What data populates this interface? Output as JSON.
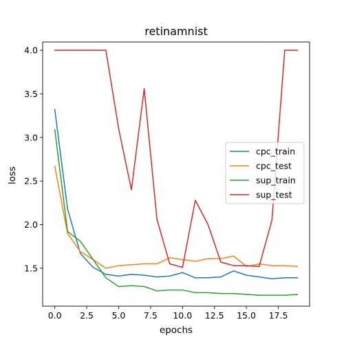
{
  "chart_data": {
    "type": "line",
    "title": "retinamnist",
    "xlabel": "epochs",
    "ylabel": "loss",
    "xlim": [
      -0.95,
      19.95
    ],
    "ylim": [
      1.065,
      4.095
    ],
    "xticks": [
      0.0,
      2.5,
      5.0,
      7.5,
      10.0,
      12.5,
      15.0,
      17.5
    ],
    "xtick_labels": [
      "0.0",
      "2.5",
      "5.0",
      "7.5",
      "10.0",
      "12.5",
      "15.0",
      "17.5"
    ],
    "yticks": [
      1.5,
      2.0,
      2.5,
      3.0,
      3.5,
      4.0
    ],
    "ytick_labels": [
      "1.5",
      "2.0",
      "2.5",
      "3.0",
      "3.5",
      "4.0"
    ],
    "grid": false,
    "legend_position": "center-right",
    "x": [
      0,
      1,
      2,
      3,
      4,
      5,
      6,
      7,
      8,
      9,
      10,
      11,
      12,
      13,
      14,
      15,
      16,
      17,
      18,
      19
    ],
    "series": [
      {
        "name": "cpc_train",
        "color": "#1f77b4",
        "values": [
          3.32,
          2.18,
          1.67,
          1.51,
          1.43,
          1.41,
          1.43,
          1.42,
          1.4,
          1.41,
          1.45,
          1.39,
          1.39,
          1.4,
          1.47,
          1.42,
          1.4,
          1.38,
          1.39,
          1.39
        ]
      },
      {
        "name": "cpc_test",
        "color": "#ff7f0e",
        "values": [
          2.67,
          1.9,
          1.69,
          1.6,
          1.5,
          1.53,
          1.54,
          1.55,
          1.55,
          1.62,
          1.6,
          1.58,
          1.61,
          1.61,
          1.64,
          1.52,
          1.55,
          1.53,
          1.53,
          1.52
        ]
      },
      {
        "name": "sup_train",
        "color": "#2ca02c",
        "values": [
          3.09,
          1.92,
          1.81,
          1.6,
          1.39,
          1.29,
          1.3,
          1.29,
          1.24,
          1.25,
          1.25,
          1.22,
          1.22,
          1.21,
          1.21,
          1.2,
          1.19,
          1.19,
          1.19,
          1.2
        ]
      },
      {
        "name": "sup_test",
        "color": "#d62728",
        "values": [
          4.0,
          4.0,
          4.0,
          4.0,
          4.0,
          3.1,
          2.4,
          3.56,
          2.06,
          1.55,
          1.51,
          2.28,
          2.0,
          1.57,
          1.53,
          1.53,
          1.52,
          2.05,
          4.0,
          4.0
        ]
      }
    ]
  }
}
